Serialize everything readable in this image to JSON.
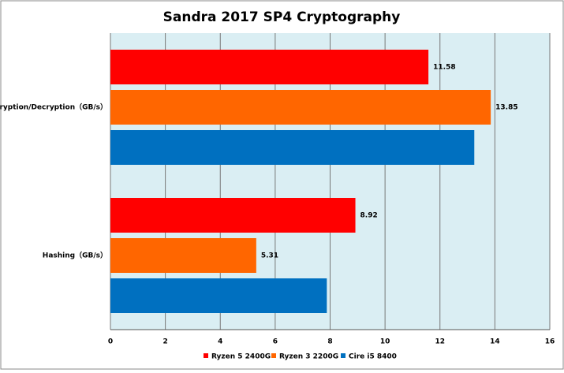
{
  "chart_data": {
    "type": "hbar",
    "title": "Sandra 2017 SP4 Cryptography",
    "categories": [
      "Encryption/Decryption（GB/s）",
      "Hashing（GB/s）"
    ],
    "series": [
      {
        "name": "Ryzen 5 2400G",
        "color": "#ff0000",
        "values": [
          11.58,
          8.92
        ],
        "data_labels": true
      },
      {
        "name": "Ryzen 3 2200G",
        "color": "#ff6600",
        "values": [
          13.85,
          5.31
        ],
        "data_labels": true
      },
      {
        "name": "Cire i5 8400",
        "color": "#0070c0",
        "values": [
          13.25,
          7.88
        ],
        "data_labels": false
      }
    ],
    "xlim": [
      0,
      16
    ],
    "xticks": [
      0,
      2,
      4,
      6,
      8,
      10,
      12,
      14,
      16
    ],
    "grid": true,
    "legend": "bottom"
  }
}
